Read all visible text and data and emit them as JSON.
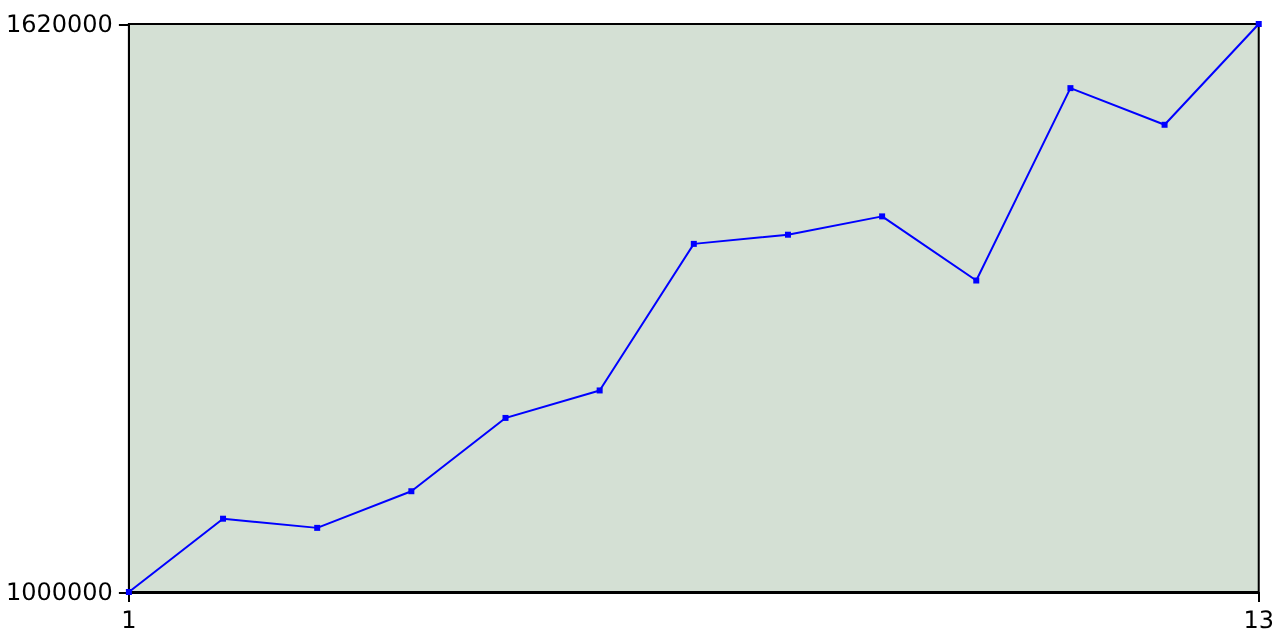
{
  "chart_data": {
    "type": "line",
    "x": [
      1,
      2,
      3,
      4,
      5,
      6,
      7,
      8,
      9,
      10,
      11,
      12,
      13
    ],
    "series": [
      {
        "color": "#0000ff",
        "values": [
          1000000,
          1080000,
          1070000,
          1110000,
          1190000,
          1220000,
          1380000,
          1390000,
          1410000,
          1340000,
          1550000,
          1510000,
          1620000
        ]
      }
    ],
    "xlim": [
      1,
      13
    ],
    "xticks": [
      1,
      13
    ],
    "ylim": [
      1000000,
      1620000
    ],
    "yticks": [
      1000000,
      1620000
    ],
    "grid": false,
    "marker": "square",
    "line_style": "solid"
  }
}
